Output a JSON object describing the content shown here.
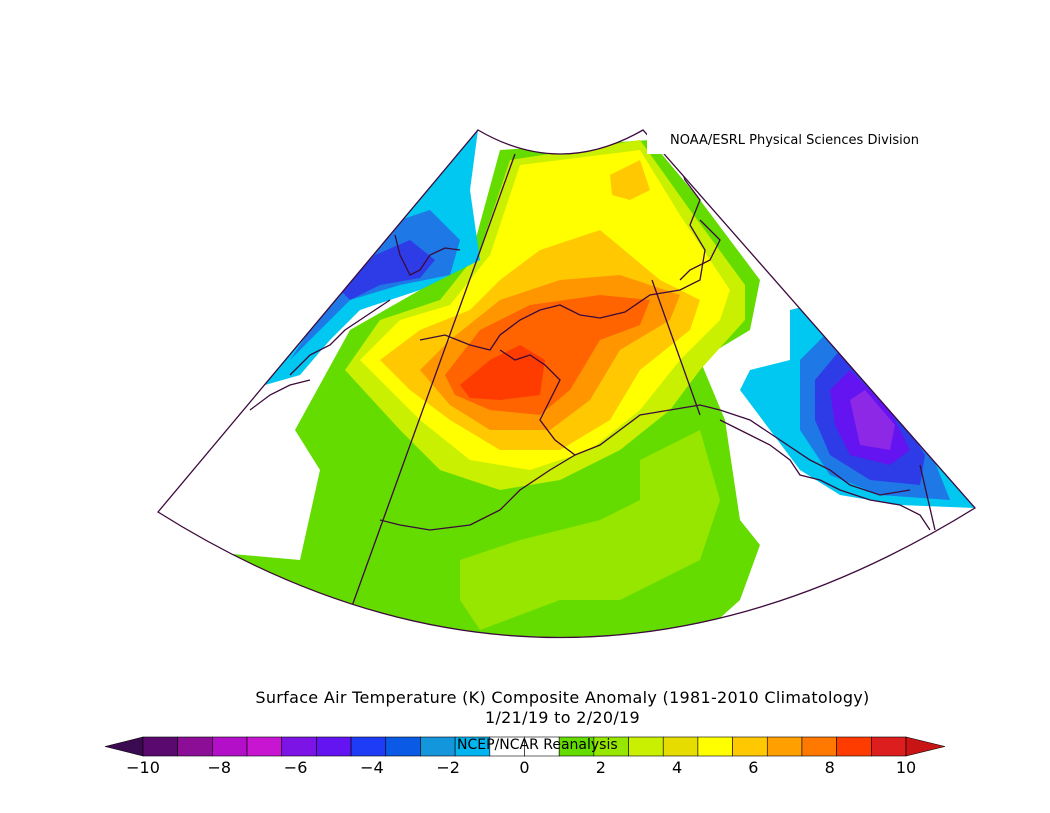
{
  "credit": "NOAA/ESRL Physical Sciences Division",
  "title": "Surface Air Temperature (K) Composite Anomaly (1981-2010 Climatology)",
  "dates": "1/21/19  to 2/20/19",
  "source": "NCEP/NCAR Reanalysis",
  "legend": {
    "tick_labels": [
      "-10",
      "-8",
      "-6",
      "-4",
      "-2",
      "0",
      "2",
      "4",
      "6",
      "8",
      "10"
    ],
    "colors": [
      "#5a0a6e",
      "#8c0e96",
      "#b40fc8",
      "#c815d2",
      "#7d14e6",
      "#6414f0",
      "#1e3cf5",
      "#0a5ae6",
      "#1496dc",
      "#00b4f0",
      "#ffffff",
      "#ffffff",
      "#64dc00",
      "#96e600",
      "#c8f000",
      "#e6dc00",
      "#ffff00",
      "#ffc800",
      "#ffa000",
      "#ff7800",
      "#ff3c00",
      "#dc1e1e"
    ],
    "low_arrow_color": "#3c0a50",
    "high_arrow_color": "#c81414"
  },
  "map": {
    "region": "Alaska and surrounding North Pacific / Arctic",
    "colors": {
      "outline": "#3c0a3c",
      "green": "#64dc00",
      "light_green": "#96e600",
      "yellow_green": "#c8f000",
      "yellow": "#ffff00",
      "gold": "#ffc800",
      "orange": "#ff9600",
      "dark_orange": "#ff6400",
      "red_orange": "#ff3c00",
      "cyan": "#00c8f0",
      "blue": "#1e78e6",
      "dark_blue": "#2d3ce6",
      "violet": "#6414f0",
      "purple": "#8c28e6"
    }
  }
}
